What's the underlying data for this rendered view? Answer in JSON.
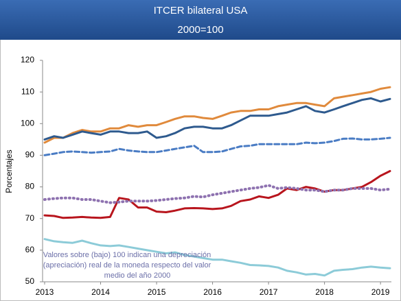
{
  "chart_data": {
    "type": "line",
    "title": "ITCER bilateral USA",
    "subtitle": "2000=100",
    "y_label": "Porcentajes",
    "annotation": [
      "Valores sobre (bajo) 100 indican una depreciación",
      "(apreciación)  real de la moneda respecto del valor",
      "medio del año 2000"
    ],
    "x": [
      2013,
      2013.17,
      2013.33,
      2013.5,
      2013.67,
      2013.83,
      2014,
      2014.17,
      2014.33,
      2014.5,
      2014.67,
      2014.83,
      2015,
      2015.17,
      2015.33,
      2015.5,
      2015.67,
      2015.83,
      2016,
      2016.17,
      2016.33,
      2016.5,
      2016.67,
      2016.83,
      2017,
      2017.17,
      2017.33,
      2017.5,
      2017.67,
      2017.83,
      2018,
      2018.17,
      2018.33,
      2018.5,
      2018.67,
      2018.83,
      2019,
      2019.17
    ],
    "xlim": [
      2013,
      2019.17
    ],
    "xticks": [
      2013,
      2014,
      2015,
      2016,
      2017,
      2018,
      2019
    ],
    "ylim": [
      50,
      120
    ],
    "yticks": [
      50,
      60,
      70,
      80,
      90,
      100,
      110,
      120
    ],
    "series": [
      {
        "color": "#e08a3c",
        "dash": "solid",
        "values": [
          94,
          95.5,
          95.5,
          97,
          98,
          97.5,
          97.5,
          98.5,
          98.5,
          99.5,
          99,
          99.5,
          99.5,
          100.5,
          101.5,
          102.3,
          102.3,
          101.8,
          101.5,
          102.5,
          103.5,
          104,
          104,
          104.5,
          104.5,
          105.5,
          106,
          106.5,
          106.5,
          106,
          105.5,
          108,
          108.5,
          109,
          109.5,
          110,
          111,
          111.5
        ]
      },
      {
        "color": "#2e5a8e",
        "dash": "solid",
        "values": [
          95,
          96,
          95.5,
          96.5,
          97.5,
          97,
          96.5,
          97.5,
          97.5,
          97,
          97,
          97.5,
          95.5,
          96,
          97,
          98.5,
          99,
          99,
          98.5,
          98.5,
          99.5,
          101,
          102.5,
          102.5,
          102.5,
          103,
          103.5,
          104.5,
          105.5,
          104,
          103.5,
          104.5,
          105.5,
          106.5,
          107.5,
          108,
          107,
          107.8
        ]
      },
      {
        "color": "#4a7cc4",
        "dash": "dashed",
        "values": [
          90,
          90.5,
          91,
          91.2,
          91,
          90.8,
          91,
          91.2,
          92,
          91.5,
          91.2,
          91,
          91,
          91.5,
          92,
          92.5,
          93,
          91,
          91,
          91.2,
          92,
          92.8,
          93,
          93.5,
          93.5,
          93.5,
          93.5,
          93.5,
          94,
          93.8,
          94,
          94.5,
          95.2,
          95.3,
          95,
          95,
          95.2,
          95.5
        ]
      },
      {
        "color": "#b8151d",
        "dash": "solid",
        "values": [
          71,
          70.8,
          70.2,
          70.3,
          70.5,
          70.3,
          70.2,
          70.5,
          76.5,
          76,
          73.5,
          73.5,
          72.2,
          72,
          72.5,
          73.2,
          73.3,
          73.2,
          73,
          73.2,
          74,
          75.5,
          76,
          77,
          76.5,
          77.5,
          79.5,
          79,
          80,
          79.5,
          78.5,
          79,
          79,
          79.5,
          80,
          81.5,
          83.5,
          85
        ]
      },
      {
        "color": "#8e72b0",
        "dash": "dotted",
        "values": [
          76,
          76.3,
          76.5,
          76.5,
          76,
          76,
          75.5,
          75,
          75.2,
          75.5,
          75.5,
          75.5,
          75.7,
          76,
          76.3,
          76.5,
          77,
          76.8,
          77.5,
          78,
          78.5,
          79,
          79.5,
          79.8,
          80.5,
          79.5,
          79.8,
          79.5,
          79,
          79,
          78.5,
          79,
          79,
          79.5,
          79.5,
          79.5,
          79,
          79.3
        ]
      },
      {
        "color": "#8ccbd8",
        "dash": "solid",
        "values": [
          63.5,
          62.8,
          62.5,
          62.3,
          63,
          62.2,
          61.5,
          61.3,
          61.5,
          61,
          60.5,
          60,
          59.5,
          59,
          59.3,
          58.5,
          58,
          57.5,
          57,
          57,
          56.5,
          56,
          55.3,
          55.2,
          55,
          54.5,
          53.5,
          53,
          52.3,
          52.5,
          52,
          53.5,
          53.8,
          54,
          54.5,
          54.8,
          54.5,
          54.3
        ]
      }
    ]
  }
}
